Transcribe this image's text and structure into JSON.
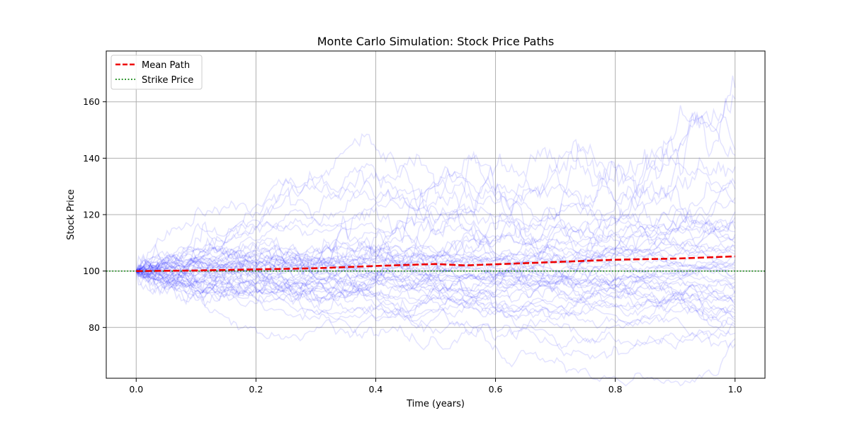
{
  "chart_data": {
    "type": "line",
    "title": "Monte Carlo Simulation: Stock Price Paths",
    "xlabel": "Time (years)",
    "ylabel": "Stock Price",
    "xlim": [
      -0.05,
      1.05
    ],
    "ylim": [
      62,
      178
    ],
    "x_ticks": [
      0.0,
      0.2,
      0.4,
      0.6,
      0.8,
      1.0
    ],
    "x_tick_labels": [
      "0.0",
      "0.2",
      "0.4",
      "0.6",
      "0.8",
      "1.0"
    ],
    "y_ticks": [
      80,
      100,
      120,
      140,
      160
    ],
    "y_tick_labels": [
      "80",
      "100",
      "120",
      "140",
      "160"
    ],
    "grid": true,
    "legend": {
      "placement": "top-left",
      "entries": [
        "Mean Path",
        "Strike Price"
      ]
    },
    "colors": {
      "paths": "#0000ff",
      "mean": "#ee0000",
      "strike": "#008000",
      "grid": "#b0b0b0"
    },
    "series": [
      {
        "name": "Mean Path",
        "style": "dashed",
        "x": [
          0.0,
          0.1,
          0.2,
          0.3,
          0.4,
          0.5,
          0.55,
          0.6,
          0.7,
          0.8,
          0.9,
          1.0
        ],
        "y": [
          100,
          100.2,
          100.6,
          101.0,
          101.8,
          102.5,
          102.0,
          102.4,
          103.2,
          104.0,
          104.4,
          105.2
        ]
      },
      {
        "name": "Strike Price",
        "style": "dotted",
        "x": [
          -0.05,
          1.05
        ],
        "y": [
          100,
          100
        ]
      }
    ],
    "simulated_paths": {
      "count": 50,
      "start_price": 100,
      "x_start": 0.0,
      "x_end": 1.0,
      "final_values": [
        165,
        161,
        143,
        141,
        137,
        131,
        129,
        126,
        124,
        121,
        119,
        117,
        115,
        114,
        113,
        112,
        110,
        109,
        108,
        107,
        106,
        105,
        104,
        103,
        102,
        101,
        100,
        99,
        98,
        97,
        96,
        95,
        94,
        93,
        92,
        91,
        90,
        89,
        88,
        87,
        86,
        85,
        84,
        83,
        82,
        81,
        80,
        78,
        76,
        74
      ]
    }
  }
}
